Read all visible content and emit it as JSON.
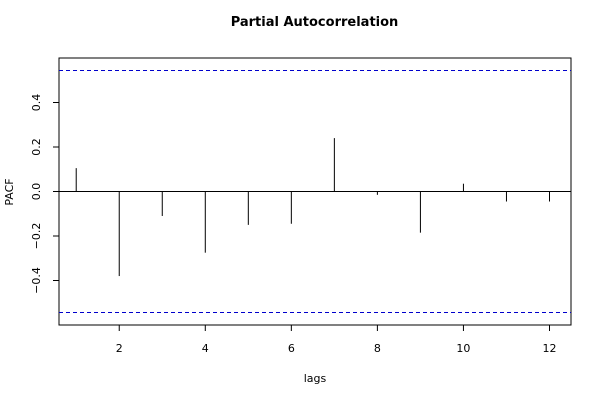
{
  "chart_data": {
    "type": "bar",
    "title": "Partial Autocorrelation",
    "xlabel": "lags",
    "ylabel": "PACF",
    "x": [
      1,
      2,
      3,
      4,
      5,
      6,
      7,
      8,
      9,
      10,
      11,
      12
    ],
    "values": [
      0.105,
      -0.38,
      -0.11,
      -0.275,
      -0.15,
      -0.145,
      0.24,
      -0.015,
      -0.185,
      0.035,
      -0.045,
      -0.045
    ],
    "confidence_bounds": [
      0.544,
      -0.544
    ],
    "xlim": [
      0.6,
      12.5
    ],
    "ylim": [
      -0.6,
      0.6
    ],
    "x_ticks": [
      2,
      4,
      6,
      8,
      10,
      12
    ],
    "y_ticks": [
      -0.4,
      -0.2,
      0.0,
      0.2,
      0.4
    ],
    "x_tick_labels": [
      "2",
      "4",
      "6",
      "8",
      "10",
      "12"
    ],
    "y_tick_labels": [
      "−0.4",
      "−0.2",
      "0.0",
      "0.2",
      "0.4"
    ],
    "colors": {
      "bars": "#000000",
      "zero_line": "#000000",
      "bounds": "#0000cc"
    },
    "legend": "none",
    "grid": false
  }
}
